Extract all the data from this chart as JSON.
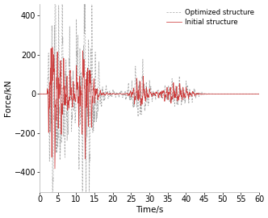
{
  "title": "",
  "xlabel": "Time/s",
  "ylabel": "Force/kN",
  "xlim": [
    0,
    60
  ],
  "ylim": [
    -500,
    460
  ],
  "yticks": [
    -400,
    -200,
    0,
    200,
    400
  ],
  "xticks": [
    0,
    5,
    10,
    15,
    20,
    25,
    30,
    35,
    40,
    45,
    50,
    55,
    60
  ],
  "optimized_color": "#aaaaaa",
  "initial_color": "#cd3b3b",
  "legend_labels": [
    "Optimized structure",
    "Initial structure"
  ],
  "background_color": "#ffffff",
  "font_size": 7.5,
  "tick_fontsize": 7,
  "duration": 60,
  "dt": 0.02,
  "opt_peak_amplitude": 390,
  "init_peak_amplitude": 200,
  "opt_second_peak": 240,
  "init_second_peak": 150
}
